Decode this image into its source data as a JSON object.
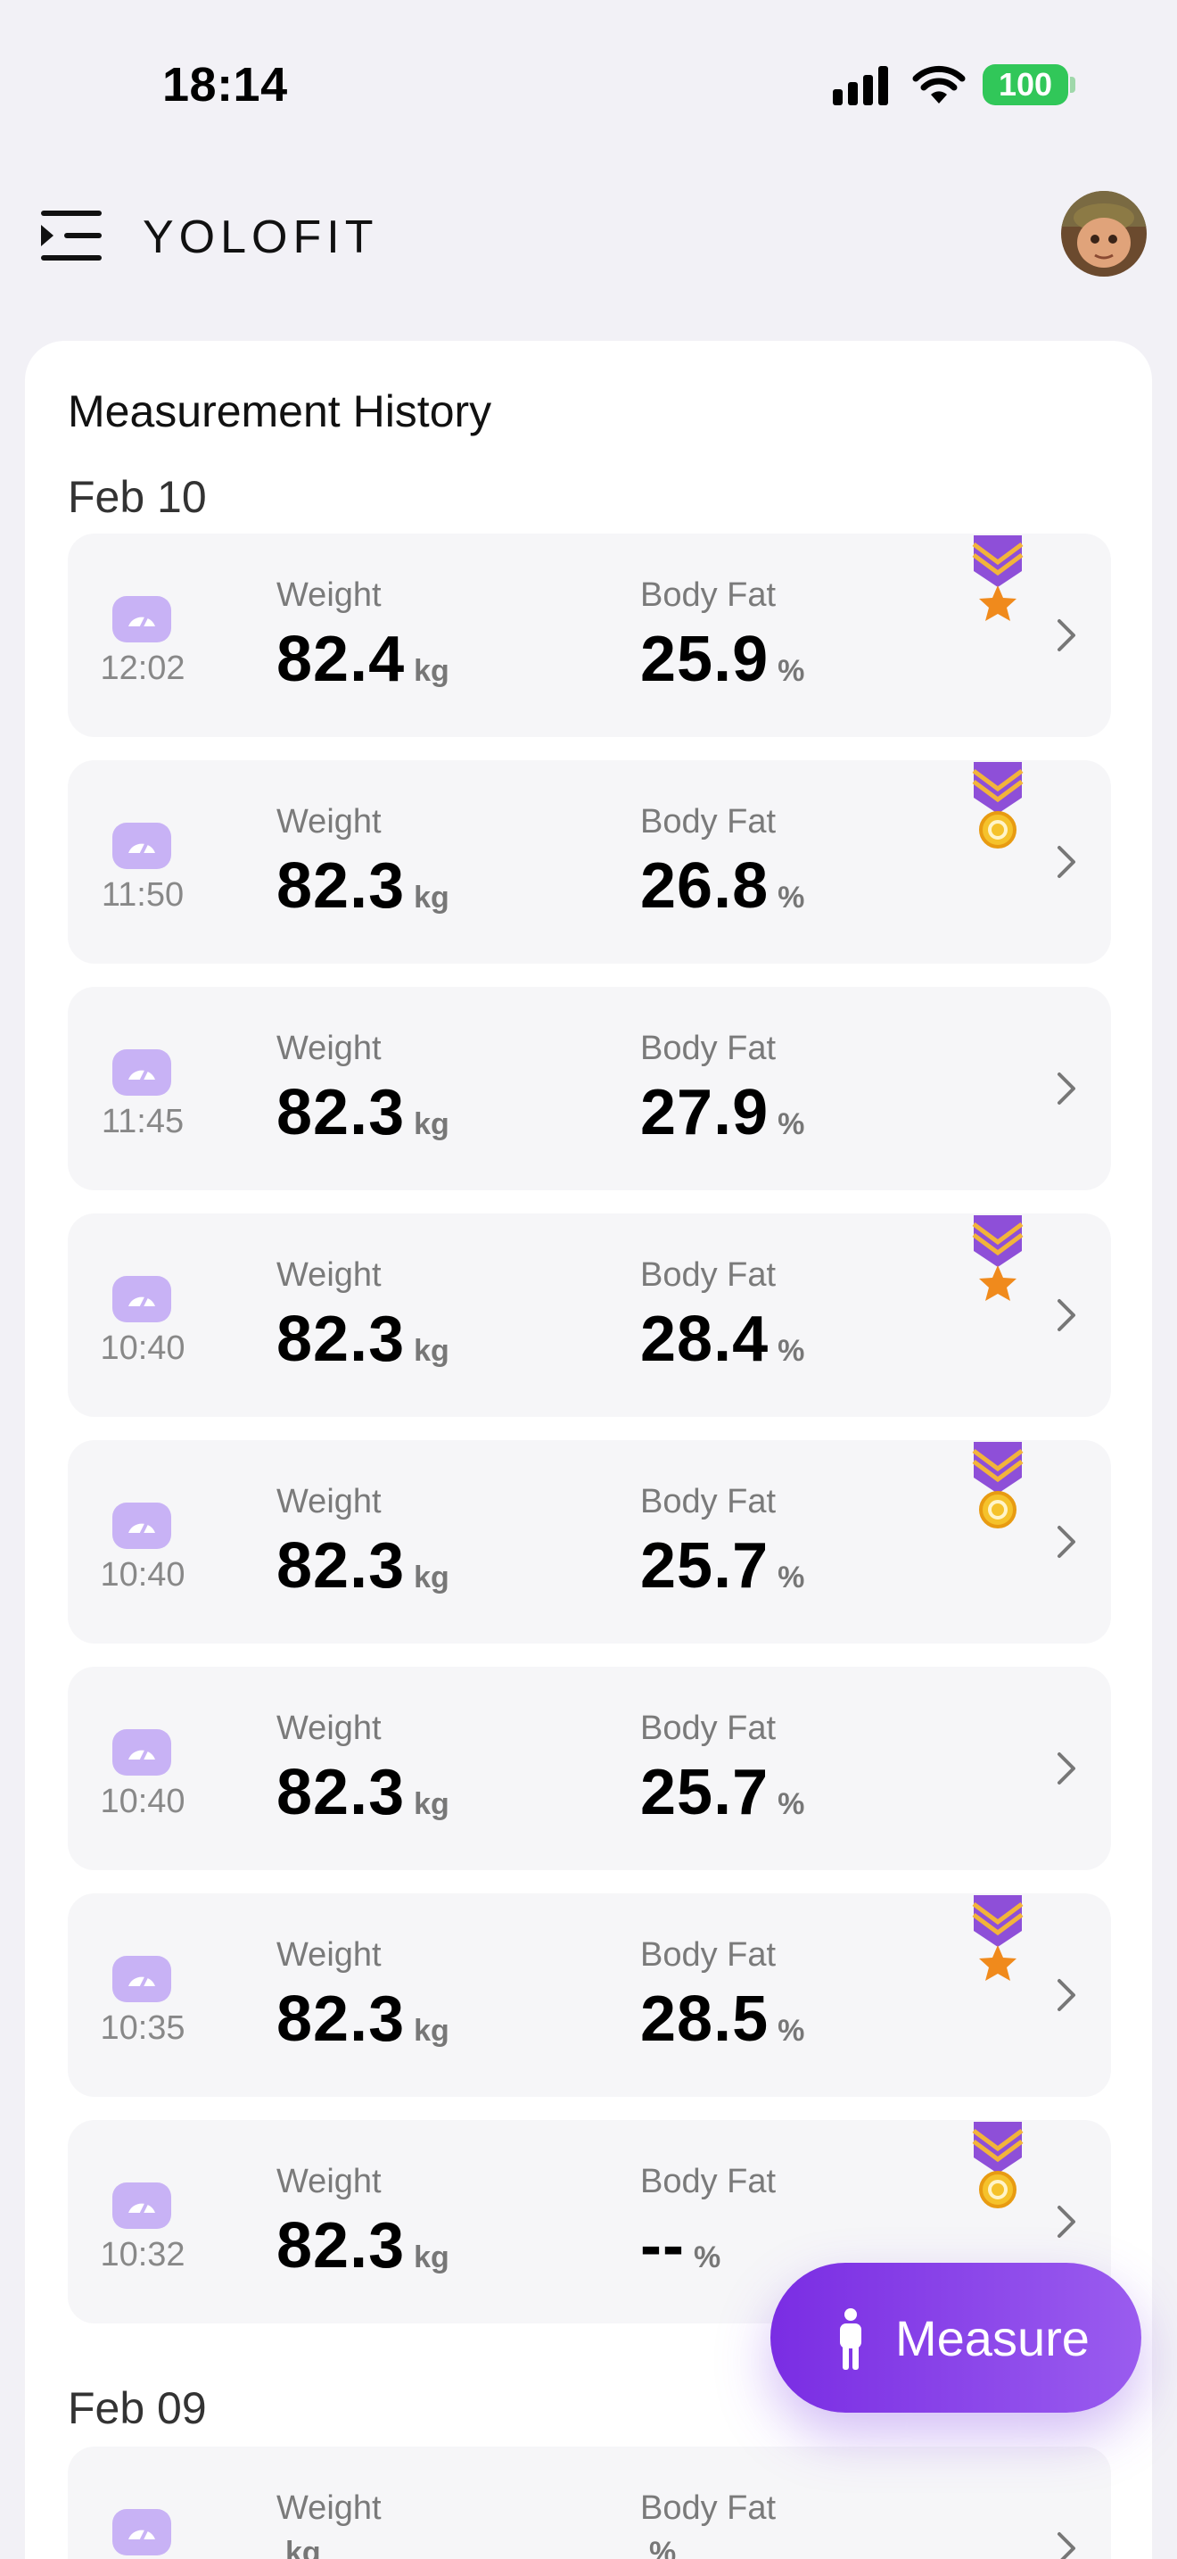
{
  "status_bar": {
    "time": "18:14",
    "battery": "100"
  },
  "header": {
    "app_name": "YOLOFIT"
  },
  "history": {
    "title": "Measurement History",
    "weight_label": "Weight",
    "fat_label": "Body Fat",
    "weight_unit": "kg",
    "fat_unit": "%",
    "groups": [
      {
        "date": "Feb 10",
        "entries": [
          {
            "time": "12:02",
            "weight": "82.4",
            "body_fat": "25.9",
            "badge": "star-medal"
          },
          {
            "time": "11:50",
            "weight": "82.3",
            "body_fat": "26.8",
            "badge": "coin-medal"
          },
          {
            "time": "11:45",
            "weight": "82.3",
            "body_fat": "27.9",
            "badge": ""
          },
          {
            "time": "10:40",
            "weight": "82.3",
            "body_fat": "28.4",
            "badge": "star-medal"
          },
          {
            "time": "10:40",
            "weight": "82.3",
            "body_fat": "25.7",
            "badge": "coin-medal"
          },
          {
            "time": "10:40",
            "weight": "82.3",
            "body_fat": "25.7",
            "badge": ""
          },
          {
            "time": "10:35",
            "weight": "82.3",
            "body_fat": "28.5",
            "badge": "star-medal"
          },
          {
            "time": "10:32",
            "weight": "82.3",
            "body_fat": "--",
            "badge": "coin-medal"
          }
        ]
      },
      {
        "date": "Feb 09",
        "entries": [
          {
            "time": "",
            "weight": "",
            "body_fat": "",
            "badge": ""
          }
        ]
      }
    ]
  },
  "measure_button": {
    "label": "Measure"
  },
  "colors": {
    "accent": "#7a2de3",
    "scale_icon": "#c8b2f5",
    "battery": "#31c759",
    "medal_ribbon": "#8e4fd8",
    "medal_star": "#f08a1c",
    "medal_coin": "#f5c22b"
  }
}
